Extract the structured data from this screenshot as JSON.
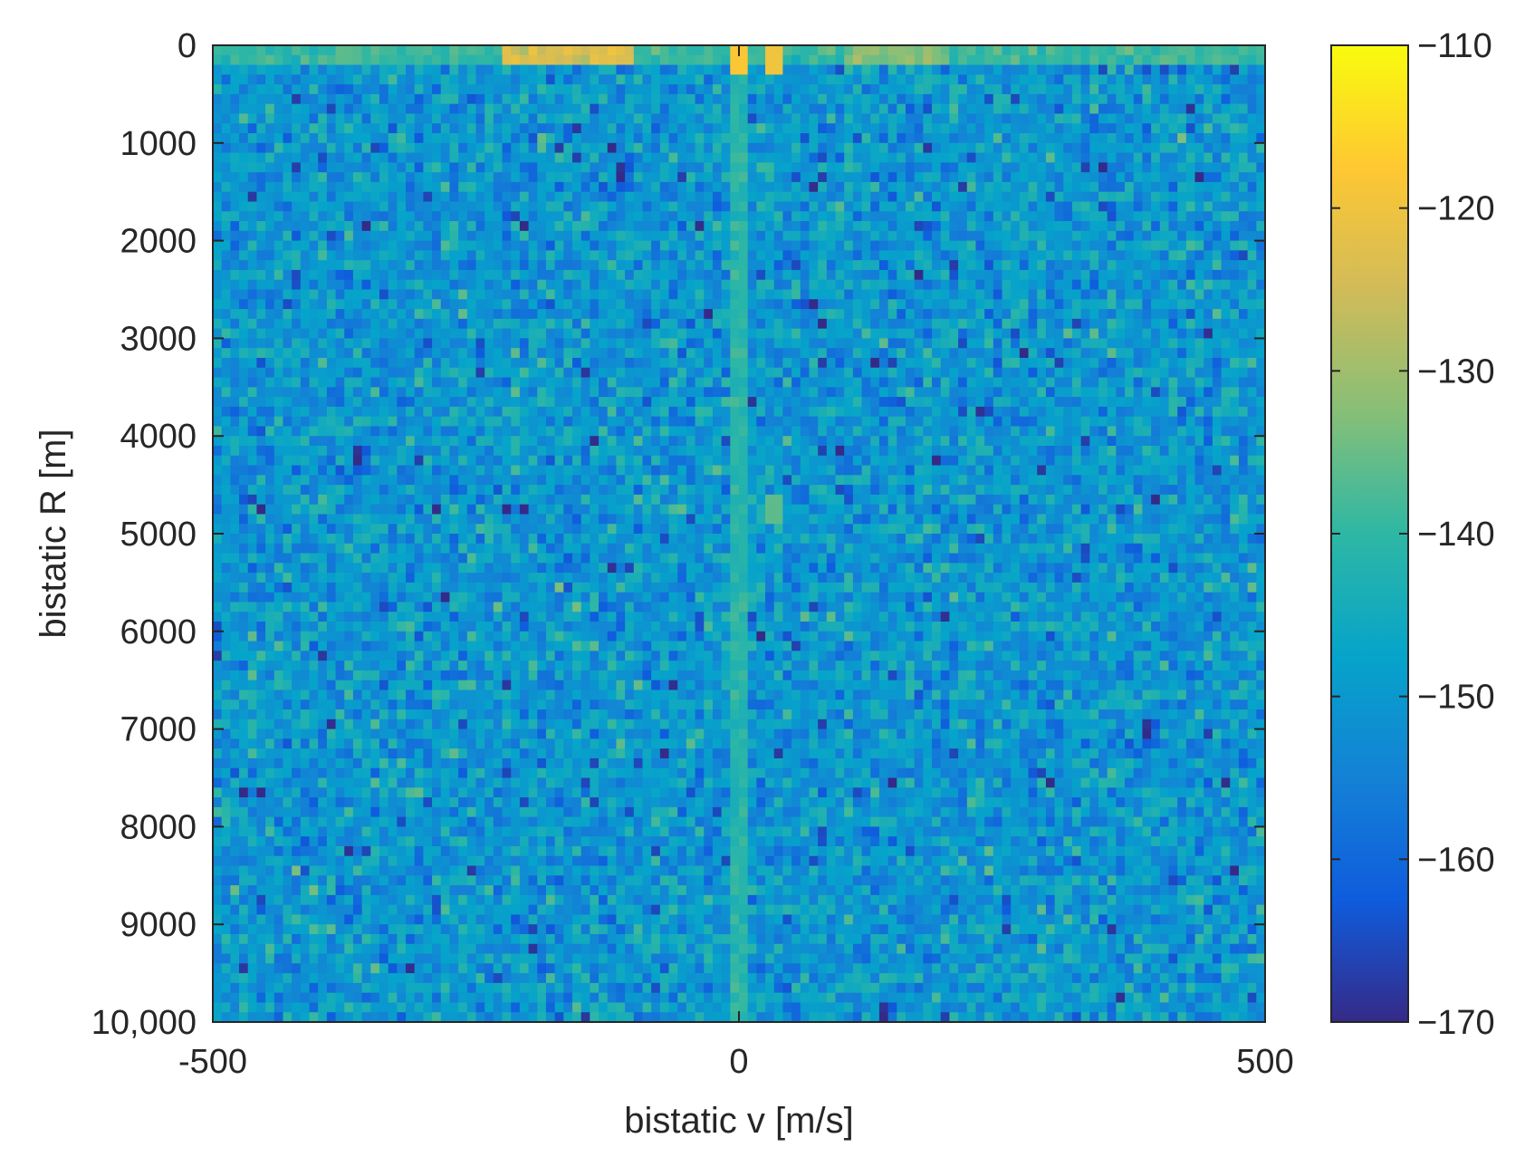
{
  "chart_data": {
    "type": "heatmap",
    "title": "",
    "xlabel": "bistatic v [m/s]",
    "ylabel": "bistatic R [m]",
    "xlim": [
      -500,
      500
    ],
    "ylim": [
      0,
      10000
    ],
    "y_reversed": true,
    "x_ticks": [
      -500,
      0,
      500
    ],
    "x_tick_labels": [
      "-500",
      "0",
      "500"
    ],
    "y_ticks": [
      0,
      1000,
      2000,
      3000,
      4000,
      5000,
      6000,
      7000,
      8000,
      9000,
      10000
    ],
    "y_tick_labels": [
      "0",
      "1000",
      "2000",
      "3000",
      "4000",
      "5000",
      "6000",
      "7000",
      "8000",
      "9000",
      "10,000"
    ],
    "grid": false,
    "colormap": "parula",
    "colormap_stops": [
      "#352a87",
      "#0f5cdd",
      "#1481d6",
      "#06a4ca",
      "#2eb7a4",
      "#87bf77",
      "#d1bb59",
      "#fec832",
      "#f9fb0e"
    ],
    "colorbar": {
      "location": "right",
      "limits": [
        -170,
        -110
      ],
      "ticks": [
        -110,
        -120,
        -130,
        -140,
        -150,
        -160,
        -170
      ],
      "tick_labels": [
        "−110",
        "−120",
        "−130",
        "−140",
        "−150",
        "−160",
        "−170"
      ]
    },
    "grid_resolution": {
      "velocity_bins": 120,
      "range_bins": 100
    },
    "background_level": -150,
    "noise_std": 5,
    "features": [
      {
        "kind": "zero-doppler clutter ridge",
        "v": 0,
        "level": -141
      },
      {
        "kind": "direct signal",
        "v": [
          -225,
          -100
        ],
        "r": [
          0,
          200
        ],
        "level": -124
      },
      {
        "kind": "direct signal",
        "v": [
          100,
          200
        ],
        "r": [
          0,
          200
        ],
        "level": -133
      },
      {
        "kind": "direct signal",
        "v": [
          -500,
          500
        ],
        "r": [
          0,
          200
        ],
        "level": -139
      },
      {
        "kind": "peak",
        "v": 0,
        "r": 100,
        "level": -118
      },
      {
        "kind": "peak",
        "v": 35,
        "r": 100,
        "level": -120
      },
      {
        "kind": "peak",
        "v": 35,
        "r": 4750,
        "level": -136
      }
    ]
  }
}
